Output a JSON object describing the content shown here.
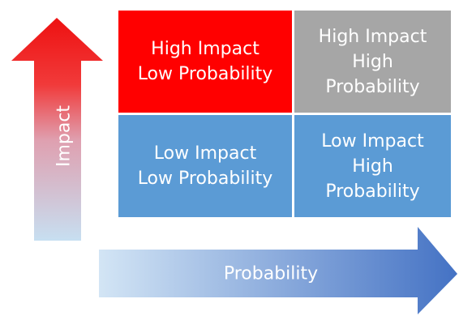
{
  "quadrants": {
    "high_impact_low_probability": [
      "High Impact",
      "Low Probability"
    ],
    "high_impact_high_probability": [
      "High Impact",
      "High",
      "Probability"
    ],
    "low_impact_low_probability": [
      "Low Impact",
      "Low Probability"
    ],
    "low_impact_high_probability": [
      "Low Impact",
      "High",
      "Probability"
    ]
  },
  "axes": {
    "vertical_label": "Impact",
    "horizontal_label": "Probability"
  },
  "colors": {
    "high_low": "#ff0000",
    "high_high": "#a6a6a6",
    "low_low": "#5b9bd5",
    "low_high": "#5b9bd5",
    "impact_arrow_top": "#ee1111",
    "impact_arrow_bottom": "#c7dff1",
    "probability_arrow_left": "#cfe2f3",
    "probability_arrow_right": "#4472c4"
  }
}
